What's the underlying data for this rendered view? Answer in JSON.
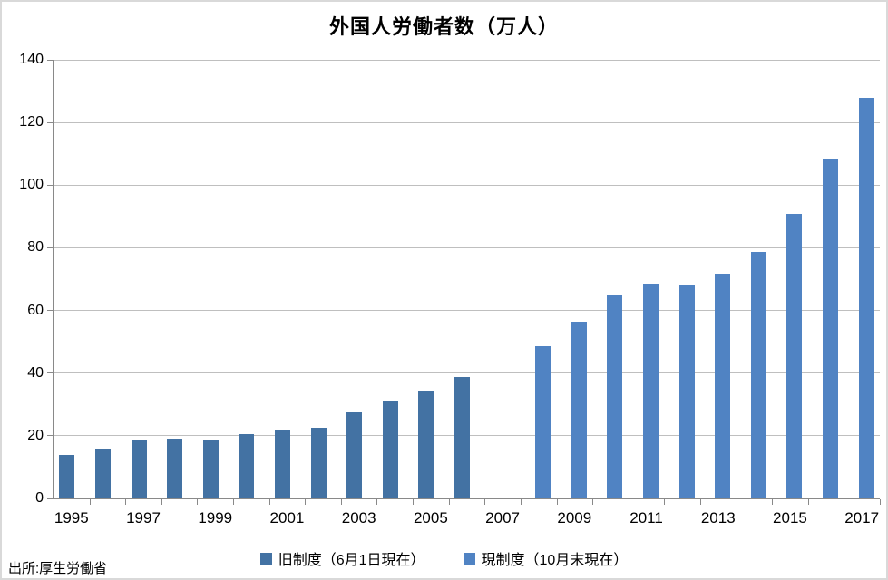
{
  "title": "外国人労働者数（万人）",
  "source": "出所:厚生労働省",
  "colors": {
    "old_series": "#4372A3",
    "new_series": "#5083C3",
    "gridline": "#BFBFBF",
    "axis": "#898989",
    "border": "#D9D9D9"
  },
  "chart_data": {
    "type": "bar",
    "title": "外国人労働者数（万人）",
    "xlabel": "",
    "ylabel": "",
    "ylim": [
      0,
      140
    ],
    "yticks": [
      0,
      20,
      40,
      60,
      80,
      100,
      120,
      140
    ],
    "grid": true,
    "legend_position": "bottom",
    "xtick_label_step": 2,
    "categories": [
      1995,
      1996,
      1997,
      1998,
      1999,
      2000,
      2001,
      2002,
      2003,
      2004,
      2005,
      2006,
      2007,
      2008,
      2009,
      2010,
      2011,
      2012,
      2013,
      2014,
      2015,
      2016,
      2017
    ],
    "series": [
      {
        "name": "旧制度（6月1日現在）",
        "color": "#4372A3",
        "values": [
          14.0,
          15.5,
          18.4,
          19.0,
          18.9,
          20.6,
          22.1,
          22.6,
          27.5,
          31.2,
          34.4,
          38.8,
          null,
          null,
          null,
          null,
          null,
          null,
          null,
          null,
          null,
          null,
          null
        ]
      },
      {
        "name": "現制度（10月末現在）",
        "color": "#5083C3",
        "values": [
          null,
          null,
          null,
          null,
          null,
          null,
          null,
          null,
          null,
          null,
          null,
          null,
          null,
          48.6,
          56.3,
          64.9,
          68.6,
          68.2,
          71.8,
          78.8,
          90.8,
          108.4,
          127.9
        ]
      }
    ]
  }
}
